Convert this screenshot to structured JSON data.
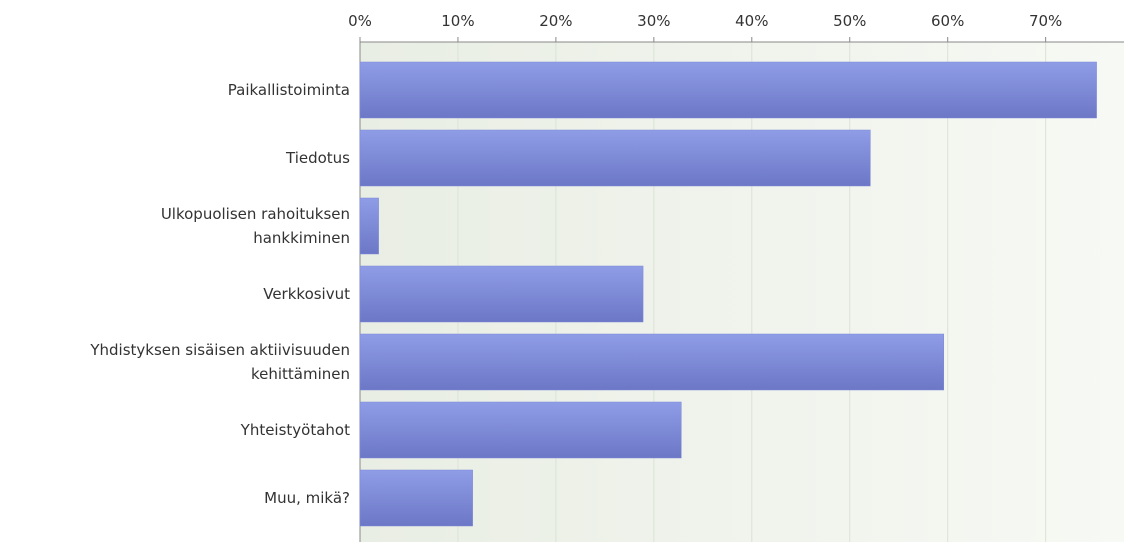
{
  "chart_data": {
    "type": "hbar",
    "categories": [
      "Paikallistoiminta",
      "Tiedotus",
      "Ulkopuolisen rahoituksen\nhankkiminen",
      "Verkkosivut",
      "Yhdistyksen sisäisen aktiivisuuden\nkehittäminen",
      "Yhteistyötahot",
      "Muu, mikä?"
    ],
    "values": [
      75.2,
      52.1,
      1.9,
      28.9,
      59.6,
      32.8,
      11.5
    ],
    "color": "#7d89d8",
    "xlim": [
      0,
      78
    ],
    "xticks": [
      {
        "value": 0,
        "label": "0%"
      },
      {
        "value": 10,
        "label": "10%"
      },
      {
        "value": 20,
        "label": "20%"
      },
      {
        "value": 30,
        "label": "30%"
      },
      {
        "value": 40,
        "label": "40%"
      },
      {
        "value": 50,
        "label": "50%"
      },
      {
        "value": 60,
        "label": "60%"
      },
      {
        "value": 70,
        "label": "70%"
      }
    ],
    "grid": true
  }
}
